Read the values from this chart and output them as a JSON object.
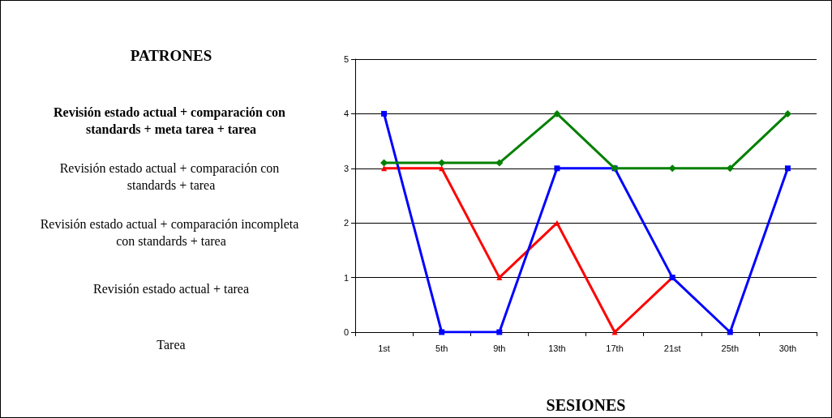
{
  "chart_data": {
    "type": "line",
    "categories": [
      "1st",
      "5th",
      "9th",
      "13th",
      "17th",
      "21st",
      "25th",
      "30th"
    ],
    "xlabel": "SESIONES",
    "series": [
      {
        "color": "#008000",
        "marker": "diamond",
        "values": [
          3.1,
          3.1,
          3.1,
          4,
          3,
          3,
          3,
          4
        ]
      },
      {
        "color": "#0000ff",
        "marker": "square",
        "values": [
          4,
          0,
          0,
          3,
          3,
          1,
          0,
          3
        ]
      },
      {
        "color": "#ff0000",
        "marker": "triangle",
        "values": [
          3,
          3,
          1,
          2,
          0,
          1,
          null,
          null
        ]
      }
    ],
    "ylim": [
      0,
      5
    ],
    "yticks": [
      0,
      1,
      2,
      3,
      4,
      5
    ],
    "annotations": [
      "PATRONES",
      "Revisión estado actual + comparación con standards + meta tarea + tarea",
      "Revisión estado actual + comparación con standards + tarea",
      "Revisión estado actual + comparación incompleta con standards + tarea",
      "Revisión estado actual + tarea",
      "Tarea"
    ],
    "grid": "y",
    "line_style": "solid"
  }
}
